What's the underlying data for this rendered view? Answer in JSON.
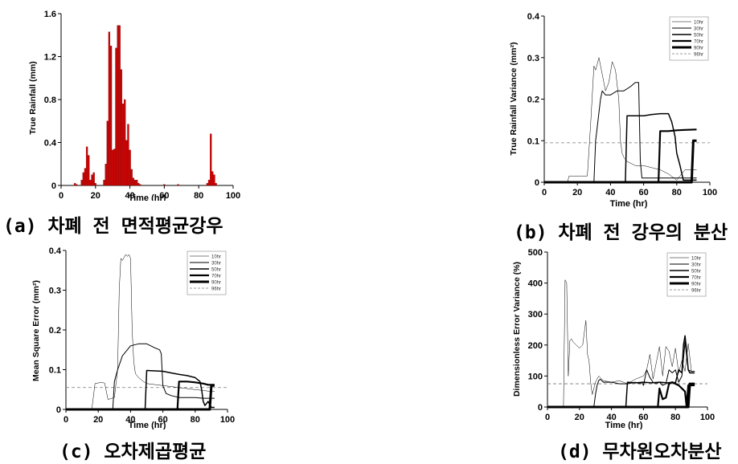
{
  "captions": {
    "a": "(a) 차폐 전 면적평균강우",
    "b": "(b) 차폐 전 강우의 분산",
    "c": "(c) 오차제곱평균",
    "d": "(d) 무차원오차분산"
  },
  "chart_data": [
    {
      "id": "a",
      "type": "bar",
      "xlabel": "Time (hr)",
      "ylabel": "True Rainfall (mm)",
      "xlim": [
        0,
        100
      ],
      "ylim": [
        0,
        1.6
      ],
      "xticks": [
        "0",
        "20",
        "40",
        "60",
        "80",
        "100"
      ],
      "yticks": [
        "0",
        "0.4",
        "0.8",
        "1.2",
        "1.6"
      ],
      "bar_color": "#d40000",
      "x": [
        8,
        9,
        12,
        13,
        14,
        15,
        16,
        17,
        18,
        19,
        20,
        25,
        26,
        27,
        28,
        29,
        30,
        31,
        32,
        33,
        34,
        35,
        36,
        37,
        38,
        39,
        40,
        41,
        42,
        43,
        44,
        45,
        46,
        60,
        68,
        85,
        86,
        87,
        88,
        89,
        90
      ],
      "values": [
        0.02,
        0.01,
        0.05,
        0.12,
        0.16,
        0.36,
        0.28,
        0.05,
        0.1,
        0.12,
        0.02,
        0.05,
        0.2,
        0.6,
        1.43,
        1.3,
        0.33,
        0.34,
        1.28,
        1.49,
        1.49,
        1.08,
        0.76,
        0.8,
        0.42,
        0.57,
        0.33,
        0.15,
        0.07,
        0.05,
        0.05,
        0.02,
        0.01,
        0.01,
        0.01,
        0.02,
        0.05,
        0.48,
        0.13,
        0.1,
        0.02
      ]
    },
    {
      "id": "b",
      "type": "line",
      "xlabel": "Time (hr)",
      "ylabel": "True Rainfall Variance (mm²)",
      "xlim": [
        0,
        100
      ],
      "ylim": [
        0,
        0.4
      ],
      "xticks": [
        "0",
        "20",
        "40",
        "60",
        "80",
        "100"
      ],
      "yticks": [
        "0",
        "0.1",
        "0.2",
        "0.3",
        "0.4"
      ],
      "legend": "top-right",
      "hline": {
        "name": "96hr",
        "y": 0.095
      },
      "series": [
        {
          "name": "10hr",
          "width": 0.5,
          "x": [
            0,
            14,
            15,
            26,
            28,
            30,
            31,
            33,
            35,
            37,
            39,
            41,
            43,
            45,
            46,
            47,
            48,
            50,
            55,
            60,
            65,
            70,
            75,
            80,
            85,
            92
          ],
          "y": [
            0,
            0,
            0.015,
            0.015,
            0.14,
            0.28,
            0.27,
            0.3,
            0.26,
            0.22,
            0.24,
            0.29,
            0.27,
            0.2,
            0.1,
            0.07,
            0.06,
            0.05,
            0.04,
            0.04,
            0.035,
            0.03,
            0.02,
            0.005,
            0.03,
            0.03
          ]
        },
        {
          "name": "30hr",
          "width": 1,
          "x": [
            0,
            30,
            31,
            34,
            35,
            37,
            40,
            44,
            48,
            52,
            55,
            57,
            58,
            59,
            61,
            65,
            70,
            75,
            80,
            85,
            92
          ],
          "y": [
            0,
            0,
            0.1,
            0.2,
            0.22,
            0.21,
            0.21,
            0.22,
            0.22,
            0.23,
            0.24,
            0.24,
            0.05,
            0.01,
            0.01,
            0.01,
            0.01,
            0.01,
            0.01,
            0.01,
            0.01
          ]
        },
        {
          "name": "50hr",
          "width": 1.5,
          "x": [
            0,
            49,
            50,
            55,
            60,
            65,
            70,
            75,
            77,
            79,
            80,
            82,
            84,
            87,
            92
          ],
          "y": [
            0,
            0,
            0.16,
            0.16,
            0.16,
            0.163,
            0.165,
            0.165,
            0.145,
            0.11,
            0.07,
            0.04,
            0.005,
            0.005,
            0.005
          ]
        },
        {
          "name": "70hr",
          "width": 2.2,
          "x": [
            0,
            69,
            70,
            75,
            80,
            85,
            92
          ],
          "y": [
            0,
            0,
            0.123,
            0.123,
            0.125,
            0.126,
            0.127
          ]
        },
        {
          "name": "90hr",
          "width": 3,
          "x": [
            0,
            89,
            90,
            92
          ],
          "y": [
            0,
            0,
            0.1,
            0.1
          ]
        }
      ]
    },
    {
      "id": "c",
      "type": "line",
      "xlabel": "Time (hr)",
      "ylabel": "Mean Square Error (mm²)",
      "xlim": [
        0,
        100
      ],
      "ylim": [
        0,
        0.4
      ],
      "xticks": [
        "0",
        "20",
        "40",
        "60",
        "80",
        "100"
      ],
      "yticks": [
        "0",
        "0.1",
        "0.2",
        "0.3",
        "0.4"
      ],
      "legend": "top-right",
      "hline": {
        "name": "96hr",
        "y": 0.055
      },
      "series": [
        {
          "name": "10hr",
          "width": 0.5,
          "x": [
            0,
            16,
            18,
            22,
            24,
            26,
            30,
            32,
            33,
            34,
            35,
            37,
            38,
            39,
            40,
            41,
            42,
            43,
            45,
            48,
            50,
            60,
            70,
            80,
            90,
            92
          ],
          "y": [
            0,
            0,
            0.065,
            0.068,
            0.066,
            0.025,
            0.03,
            0.1,
            0.3,
            0.38,
            0.375,
            0.39,
            0.385,
            0.39,
            0.38,
            0.2,
            0.12,
            0.09,
            0.08,
            0.07,
            0.065,
            0.06,
            0.055,
            0.05,
            0.045,
            0.045
          ]
        },
        {
          "name": "30hr",
          "width": 1,
          "x": [
            0,
            29,
            30,
            32,
            35,
            37,
            40,
            45,
            50,
            55,
            58,
            59,
            60,
            62,
            65,
            70,
            75,
            80,
            85,
            90,
            92
          ],
          "y": [
            0,
            0,
            0.07,
            0.1,
            0.135,
            0.145,
            0.16,
            0.165,
            0.165,
            0.155,
            0.15,
            0.14,
            0.06,
            0.04,
            0.035,
            0.03,
            0.03,
            0.03,
            0.028,
            0.028,
            0.028
          ]
        },
        {
          "name": "50hr",
          "width": 1.5,
          "x": [
            0,
            49,
            50,
            55,
            60,
            65,
            70,
            75,
            80,
            83,
            84,
            85,
            86,
            88,
            90,
            92
          ],
          "y": [
            0,
            0,
            0.098,
            0.097,
            0.096,
            0.092,
            0.088,
            0.085,
            0.08,
            0.07,
            0.05,
            0.02,
            0.01,
            0.02,
            0.005,
            0.005
          ]
        },
        {
          "name": "70hr",
          "width": 2.2,
          "x": [
            0,
            69,
            70,
            75,
            80,
            85,
            88,
            92
          ],
          "y": [
            0,
            0,
            0.07,
            0.07,
            0.068,
            0.065,
            0.062,
            0.062
          ]
        },
        {
          "name": "90hr",
          "width": 3,
          "x": [
            0,
            89,
            90,
            92
          ],
          "y": [
            0,
            0,
            0.06,
            0.06
          ]
        }
      ]
    },
    {
      "id": "d",
      "type": "line",
      "xlabel": "Time (hr)",
      "ylabel": "Dimensionless Error Variance (%)",
      "xlim": [
        0,
        100
      ],
      "ylim": [
        0,
        500
      ],
      "xticks": [
        "0",
        "20",
        "40",
        "60",
        "80",
        "100"
      ],
      "yticks": [
        "0",
        "100",
        "200",
        "300",
        "400",
        "500"
      ],
      "legend": "top-right",
      "hline": {
        "name": "96hr",
        "y": 75
      },
      "series": [
        {
          "name": "10hr",
          "width": 0.5,
          "x": [
            0,
            10,
            11,
            12,
            13,
            14,
            15,
            16,
            18,
            20,
            22,
            24,
            25,
            26,
            27,
            28,
            30,
            32,
            35,
            40,
            45,
            50,
            55,
            60,
            62,
            64,
            66,
            70,
            72,
            74,
            76,
            78,
            80,
            82,
            84,
            86,
            88,
            90,
            92
          ],
          "y": [
            0,
            0,
            410,
            400,
            100,
            215,
            220,
            210,
            200,
            190,
            200,
            280,
            170,
            150,
            80,
            40,
            80,
            100,
            85,
            80,
            85,
            75,
            90,
            100,
            120,
            170,
            90,
            195,
            100,
            195,
            180,
            130,
            190,
            110,
            150,
            115,
            205,
            115,
            115
          ]
        },
        {
          "name": "30hr",
          "width": 1,
          "x": [
            0,
            29,
            30,
            31,
            32,
            33,
            35,
            40,
            45,
            50,
            55,
            58,
            59,
            60,
            62,
            64,
            66,
            68,
            70,
            72,
            74,
            76,
            78,
            80,
            82,
            84,
            86,
            88,
            90,
            92
          ],
          "y": [
            0,
            0,
            40,
            70,
            85,
            90,
            80,
            80,
            75,
            75,
            80,
            75,
            80,
            70,
            120,
            95,
            80,
            75,
            80,
            70,
            75,
            120,
            110,
            120,
            80,
            100,
            210,
            120,
            115,
            115
          ]
        },
        {
          "name": "50hr",
          "width": 1.5,
          "x": [
            0,
            49,
            50,
            55,
            60,
            65,
            70,
            75,
            78,
            80,
            82,
            84,
            85,
            86,
            87,
            88,
            89,
            90,
            92
          ],
          "y": [
            0,
            0,
            80,
            78,
            80,
            78,
            80,
            78,
            80,
            78,
            120,
            110,
            200,
            230,
            180,
            120,
            110,
            110,
            110
          ]
        },
        {
          "name": "70hr",
          "width": 2.2,
          "x": [
            0,
            69,
            70,
            72,
            74,
            76,
            78,
            80,
            82,
            84,
            86,
            87,
            88,
            90,
            92
          ],
          "y": [
            0,
            0,
            60,
            25,
            30,
            75,
            80,
            75,
            70,
            60,
            50,
            0,
            70,
            70,
            70
          ]
        },
        {
          "name": "90hr",
          "width": 3,
          "x": [
            0,
            88,
            89,
            90,
            92
          ],
          "y": [
            0,
            0,
            75,
            75,
            75
          ]
        }
      ]
    }
  ]
}
